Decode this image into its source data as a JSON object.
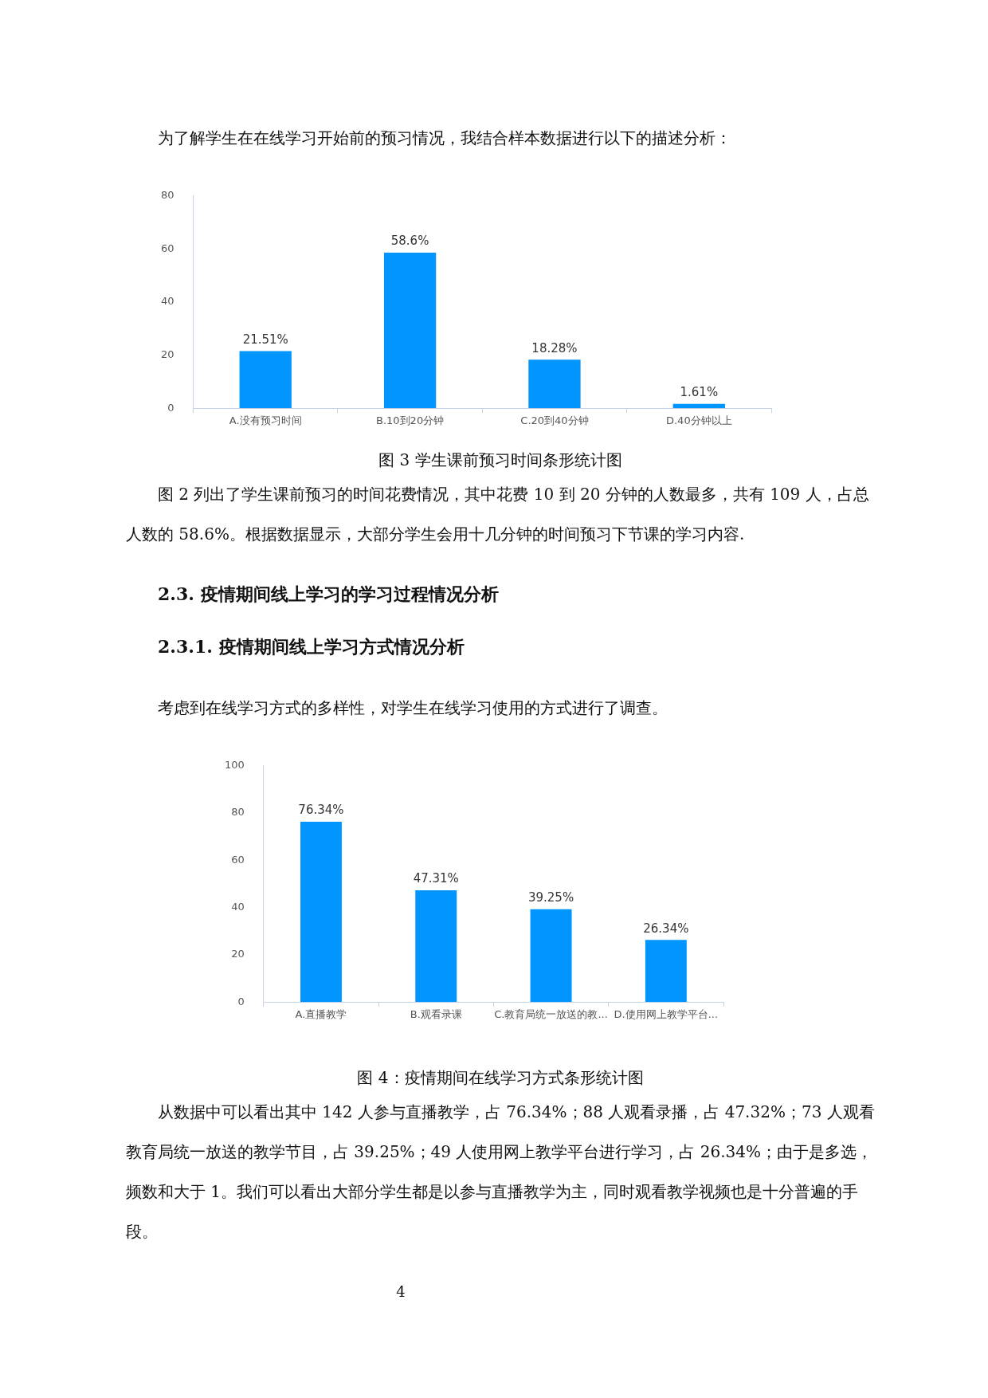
{
  "chart_data": [
    {
      "type": "bar",
      "title": "图 3 学生课前预习时间条形统计图",
      "annotations": [
        "为了解学生在在线学习开始前的预习情况，我结合样本数据进行以下的描述分析：",
        "图 2 列出了学生课前预习的时间花费情况，其中花费 10 到 20 分钟的人数最多，共有 109 人，占总人数的 58.6%。根据数据显示，大部分学生会用十几分钟的时间预习下节课的学习内容."
      ],
      "categories": [
        "A.没有预习时间",
        "B.10到20分钟",
        "C.20到40分钟",
        "D.40分钟以上"
      ],
      "values": [
        21.51,
        58.6,
        18.28,
        1.61
      ],
      "value_labels": [
        "21.51%",
        "58.6%",
        "18.28%",
        "1.61%"
      ],
      "color": "#0095ff",
      "ylim": [
        0,
        80
      ],
      "yticks": [
        0,
        20,
        40,
        60,
        80
      ]
    },
    {
      "type": "bar",
      "title": "图 4：疫情期间在线学习方式条形统计图",
      "annotations": [
        "2.3.  疫情期间线上学习的学习过程情况分析",
        "2.3.1.  疫情期间线上学习方式情况分析",
        "考虑到在线学习方式的多样性，对学生在线学习使用的方式进行了调查。",
        "从数据中可以看出其中 142 人参与直播教学，占 76.34%；88 人观看录播，占 47.32%；73 人观看教育局统一放送的教学节目，占 39.25%；49 人使用网上教学平台进行学习，占 26.34%；由于是多选，频数和大于 1。我们可以看出大部分学生都是以参与直播教学为主，同时观看教学视频也是十分普遍的手段。",
        "4"
      ],
      "categories": [
        "A.直播教学",
        "B.观看录课",
        "C.教育局统一放送的教...",
        "D.使用网上教学平台..."
      ],
      "values": [
        76.34,
        47.31,
        39.25,
        26.34
      ],
      "value_labels": [
        "76.34%",
        "47.31%",
        "39.25%",
        "26.34%"
      ],
      "color": "#0095ff",
      "ylim": [
        0,
        100
      ],
      "yticks": [
        0,
        20,
        40,
        60,
        80,
        100
      ]
    }
  ]
}
